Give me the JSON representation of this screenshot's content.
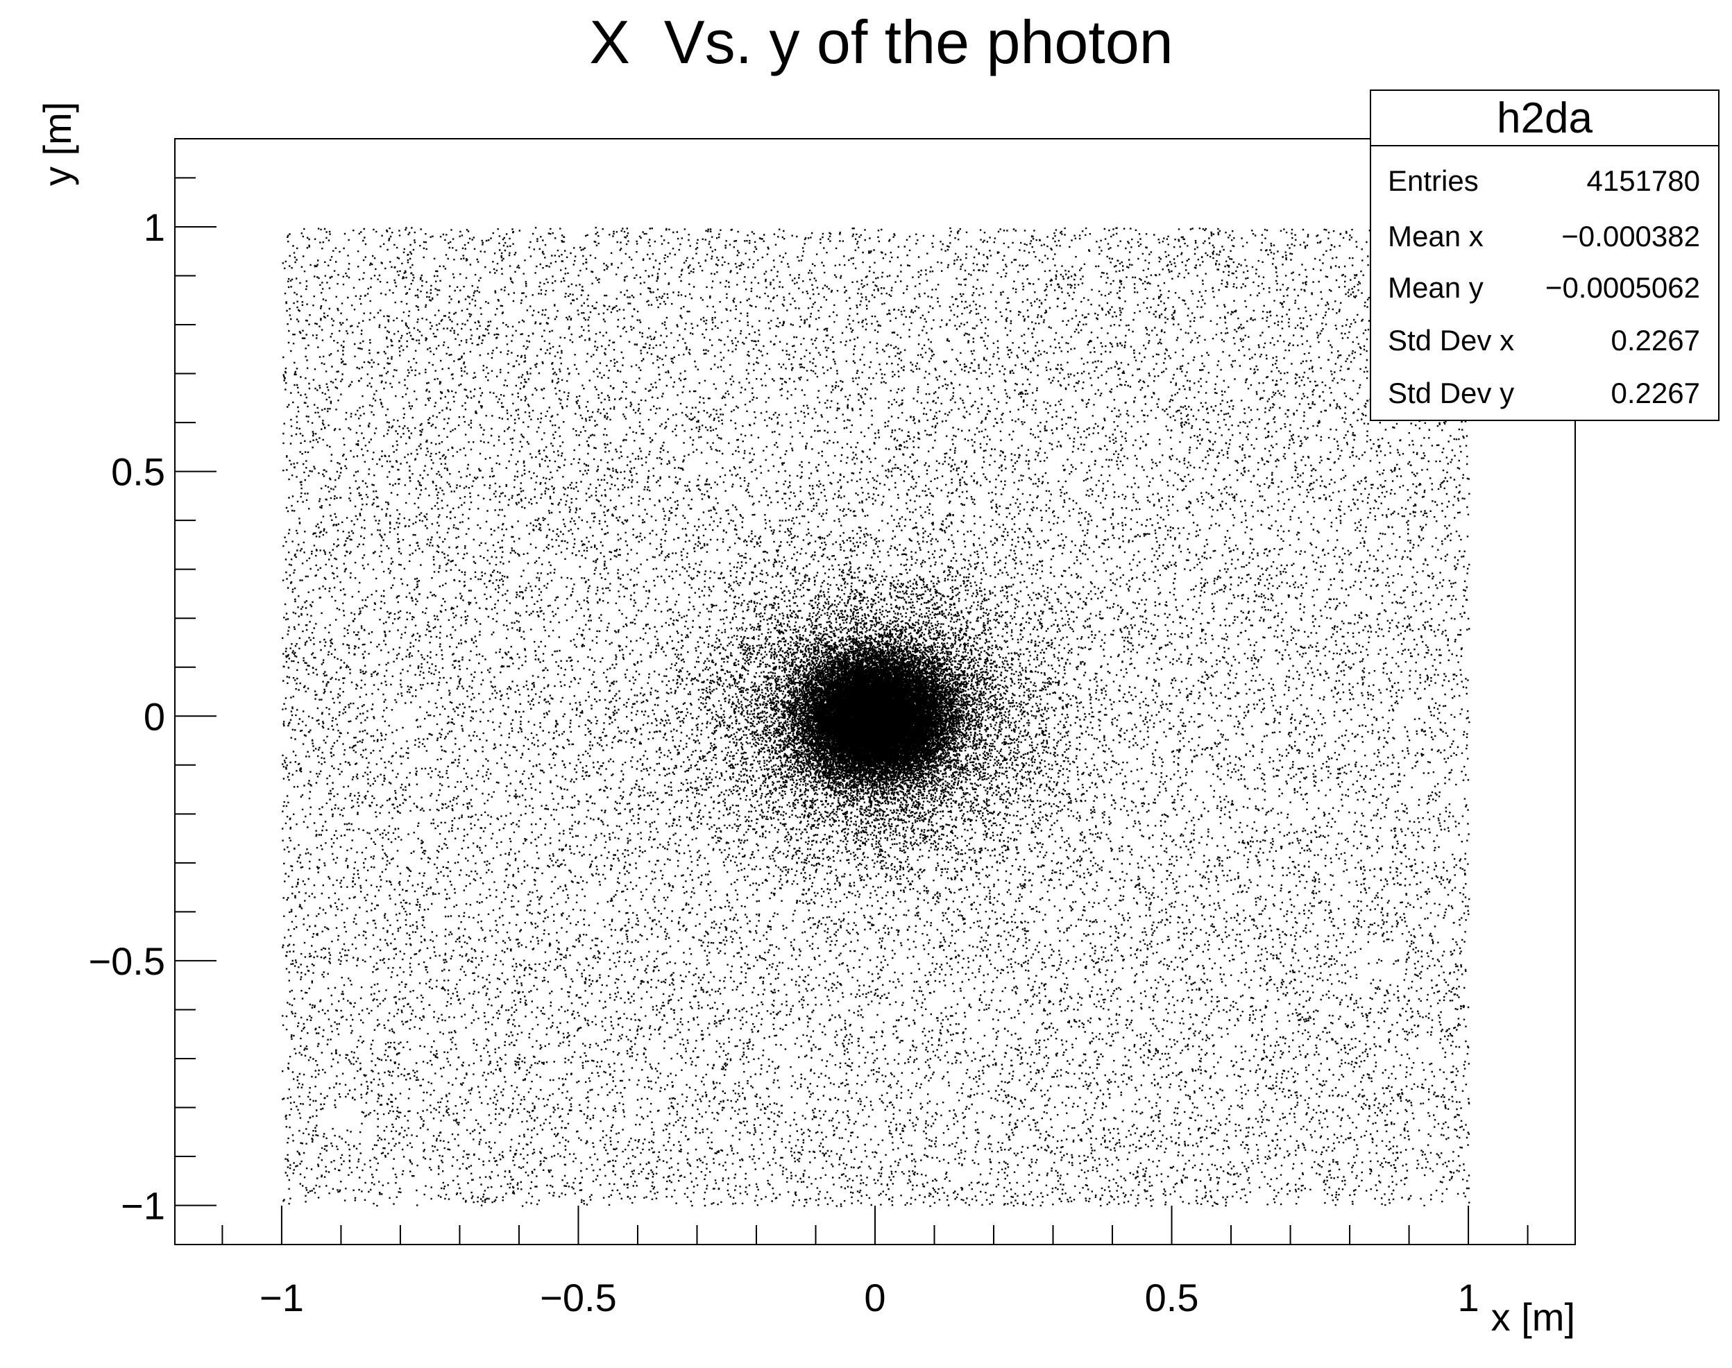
{
  "chart_data": {
    "type": "scatter",
    "title": "X  Vs. y of the photon",
    "xlabel": "x [m]",
    "ylabel": "y [m]",
    "xlim": [
      -1.18,
      1.18
    ],
    "ylim": [
      -1.08,
      1.18
    ],
    "x_ticks": [
      -1,
      -0.5,
      0,
      0.5,
      1
    ],
    "x_tick_labels": [
      "−1",
      "−0.5",
      "0",
      "0.5",
      "1"
    ],
    "y_ticks": [
      -1,
      -0.5,
      0,
      0.5,
      1
    ],
    "y_tick_labels": [
      "−1",
      "−0.5",
      "0",
      "0.5",
      "1"
    ],
    "uniform_region": {
      "x": [
        -1,
        1
      ],
      "y": [
        -1,
        1
      ]
    },
    "central_cluster": {
      "x_mean": 0,
      "y_mean": 0,
      "sigma": 0.06
    },
    "marker_color": "#000000",
    "grid": false,
    "legend": "none"
  },
  "stats_box": {
    "title": "h2da",
    "rows": [
      {
        "label": "Entries",
        "value": "4151780"
      },
      {
        "label": "Mean x",
        "value": "−0.000382"
      },
      {
        "label": "Mean y",
        "value": "−0.0005062"
      },
      {
        "label": "Std Dev x",
        "value": "0.2267"
      },
      {
        "label": "Std Dev y",
        "value": "0.2267"
      }
    ]
  }
}
